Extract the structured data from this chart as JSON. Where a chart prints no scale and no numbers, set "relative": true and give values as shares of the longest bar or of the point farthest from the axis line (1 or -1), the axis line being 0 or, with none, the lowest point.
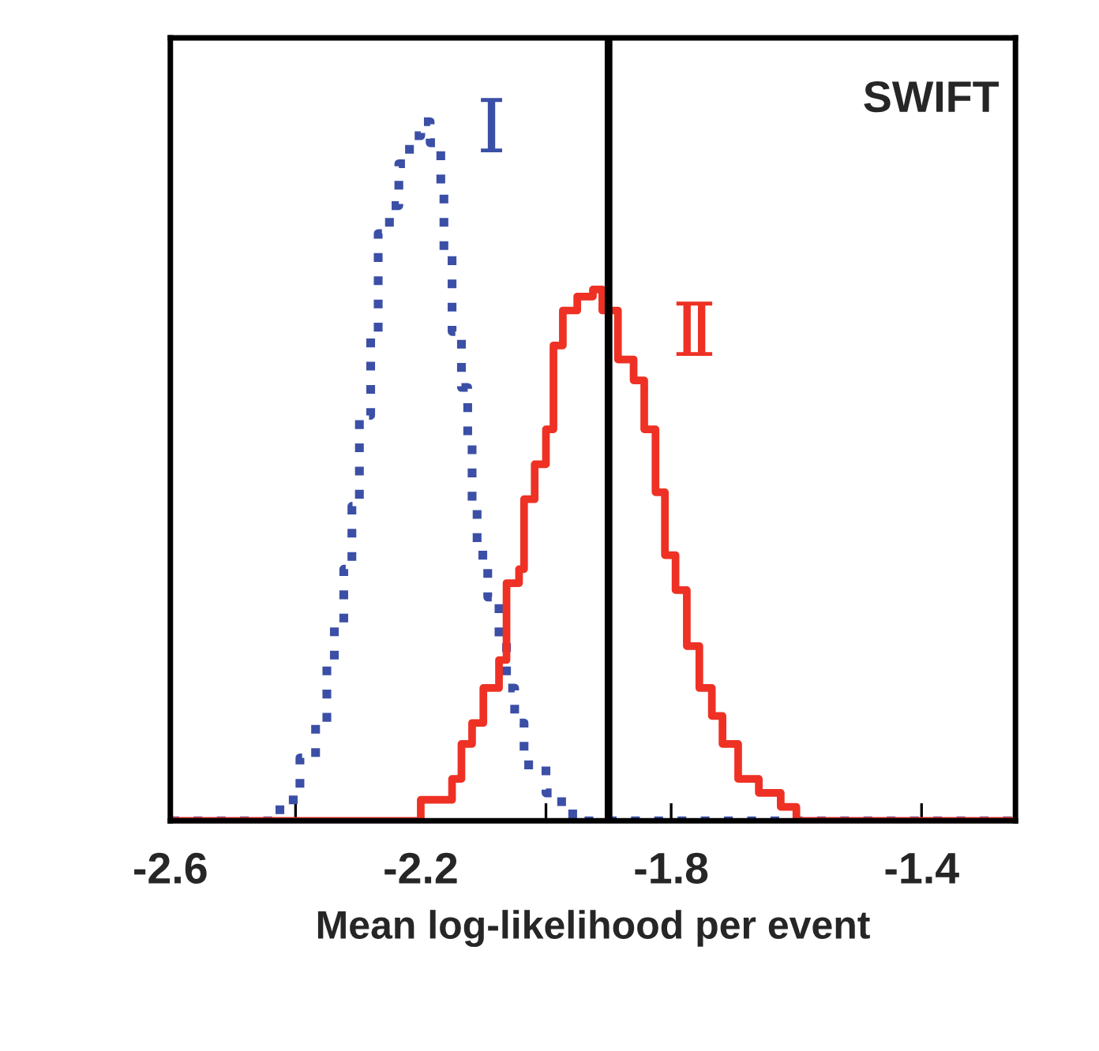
{
  "chart_data": {
    "type": "step",
    "relative": true,
    "xlabel": "Mean log-likelihood per event",
    "xlim": [
      -2.6,
      -1.25
    ],
    "xticks": [
      {
        "value": -2.6,
        "label": "-2.6"
      },
      {
        "value": -2.4,
        "label": null
      },
      {
        "value": -2.2,
        "label": "-2.2"
      },
      {
        "value": -2.0,
        "label": null
      },
      {
        "value": -1.8,
        "label": "-1.8"
      },
      {
        "value": -1.6,
        "label": null
      },
      {
        "value": -1.4,
        "label": "-1.4"
      }
    ],
    "tick_labels": "x",
    "grid": false,
    "legend": false,
    "series": [
      {
        "name": "Ⅰ",
        "color": "#3b4fa6",
        "line_style": "dotted",
        "x": [
          -2.6,
          -2.45,
          -2.425,
          -2.393,
          -2.368,
          -2.35,
          -2.338,
          -2.323,
          -2.31,
          -2.298,
          -2.28,
          -2.268,
          -2.25,
          -2.235,
          -2.218,
          -2.2,
          -2.185,
          -2.168,
          -2.163,
          -2.15,
          -2.135,
          -2.125,
          -2.118,
          -2.11,
          -2.093,
          -2.075,
          -2.063,
          -2.05,
          -2.035,
          -2.0,
          -1.975,
          -1.94,
          -1.25
        ],
        "values": [
          0,
          0,
          0.03,
          0.09,
          0.14,
          0.23,
          0.28,
          0.36,
          0.45,
          0.58,
          0.69,
          0.84,
          0.88,
          0.94,
          0.98,
          1.0,
          0.97,
          0.9,
          0.81,
          0.7,
          0.62,
          0.55,
          0.45,
          0.38,
          0.32,
          0.26,
          0.19,
          0.14,
          0.08,
          0.04,
          0.01,
          0,
          0
        ]
      },
      {
        "name": "Ⅱ",
        "color": "#ee3124",
        "line_style": "solid",
        "x": [
          -2.6,
          -2.243,
          -2.2,
          -2.15,
          -2.135,
          -2.118,
          -2.1,
          -2.075,
          -2.063,
          -2.043,
          -2.035,
          -2.018,
          -2.0,
          -1.988,
          -1.973,
          -1.95,
          -1.925,
          -1.91,
          -1.885,
          -1.86,
          -1.843,
          -1.825,
          -1.81,
          -1.793,
          -1.775,
          -1.755,
          -1.735,
          -1.718,
          -1.693,
          -1.66,
          -1.625,
          -1.6,
          -1.25
        ],
        "values": [
          0,
          0,
          0.03,
          0.06,
          0.11,
          0.14,
          0.19,
          0.23,
          0.34,
          0.36,
          0.46,
          0.51,
          0.56,
          0.68,
          0.73,
          0.75,
          0.76,
          0.73,
          0.66,
          0.63,
          0.56,
          0.47,
          0.38,
          0.33,
          0.25,
          0.19,
          0.15,
          0.11,
          0.06,
          0.04,
          0.02,
          0,
          0
        ]
      }
    ],
    "ref_lines": [
      {
        "axis": "x",
        "value": -1.9,
        "color": "#000000"
      }
    ],
    "annotations": [
      "SWIFT"
    ]
  }
}
